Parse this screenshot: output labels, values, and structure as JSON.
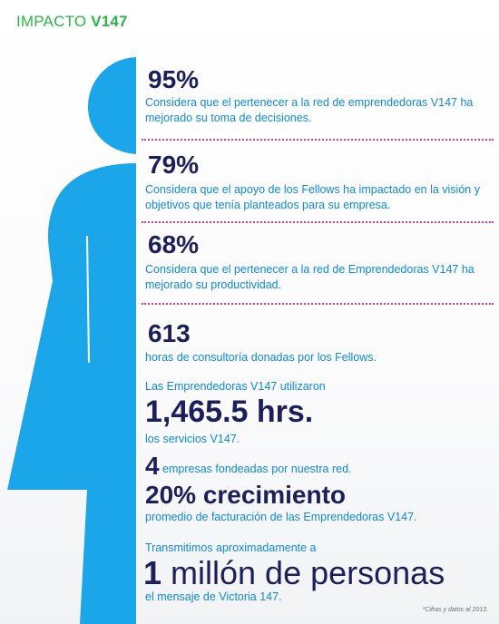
{
  "header": {
    "title_light": "IMPACTO ",
    "title_bold": "V147"
  },
  "colors": {
    "figure": "#1aa6e8",
    "dark_number": "#1d1f5b",
    "text_blue": "#0d89d8",
    "divider": "#e33786",
    "title_green": "#2bb34a"
  },
  "stats": [
    {
      "value": "95%",
      "text": "Considera que el pertenecer a la red de emprendedoras V147 ha mejorado su toma de decisiones."
    },
    {
      "value": "79%",
      "text": "Considera que el apoyo de los Fellows ha impactado en la visión y objetivos que tenía planteados para su empresa."
    },
    {
      "value": "68%",
      "text": "Considera que el pertenecer a la red de Emprendedoras V147 ha mejorado su productividad."
    }
  ],
  "hours": {
    "value": "613",
    "text": "horas de consultoría donadas por los Fellows."
  },
  "services": {
    "pre": "Las Emprendedoras V147 utilizaron",
    "value": "1,465.5 hrs.",
    "post": "los servicios V147."
  },
  "funded": {
    "value": "4",
    "text": " empresas fondeadas por nuestra red."
  },
  "growth": {
    "value": "20% crecimiento",
    "text": "promedio de facturación de las Emprendedoras V147."
  },
  "reach": {
    "pre": "Transmitimos aproximadamente a",
    "value_num": "1",
    "value_text": " millón de personas",
    "post": "el mensaje de Victoria 147."
  },
  "footnote": "*Cifras y datos al 2013."
}
